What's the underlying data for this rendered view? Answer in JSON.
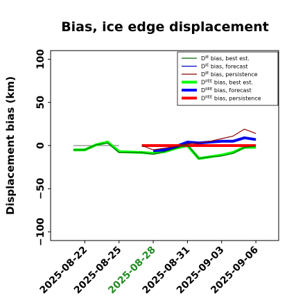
{
  "chart_data": {
    "type": "line",
    "title": "Bias, ice edge displacement",
    "ylabel": "Displacement bias (km)",
    "xlabel": "",
    "xlim": [
      "2025-08-19",
      "2025-09-08"
    ],
    "ylim": [
      -110,
      110
    ],
    "yticks": [
      100,
      50,
      0,
      -50,
      -100
    ],
    "ytick_labels": [
      "100",
      "50",
      "0",
      "−50",
      "−100"
    ],
    "xticks": [
      "2025-08-22",
      "2025-08-25",
      "2025-08-28",
      "2025-08-31",
      "2025-09-03",
      "2025-09-06"
    ],
    "xtick_colors": [
      "#000000",
      "#000000",
      "#228b22",
      "#000000",
      "#000000",
      "#000000"
    ],
    "legend_position": "top-right",
    "grid": false,
    "reference_line": {
      "y": 0,
      "color": "#888888",
      "ranges": [
        [
          "2025-08-21",
          "2025-08-25"
        ],
        [
          "2025-08-27",
          "2025-09-06"
        ]
      ]
    },
    "series": [
      {
        "name": "Dᴵᴱ bias, best est.",
        "legend_name": "D",
        "legend_sup": "IE",
        "legend_rest": " bias, best est.",
        "color": "#006400",
        "width": 1.2,
        "x": [
          "2025-08-21",
          "2025-08-22",
          "2025-08-23",
          "2025-08-24",
          "2025-08-25",
          "2025-08-27",
          "2025-08-28",
          "2025-08-29",
          "2025-08-30",
          "2025-08-31",
          "2025-09-01",
          "2025-09-02",
          "2025-09-03",
          "2025-09-04",
          "2025-09-05",
          "2025-09-06"
        ],
        "y": [
          -5,
          -5,
          1,
          3,
          -8,
          -8,
          -10,
          -7,
          -3,
          1,
          -15,
          -13,
          -12,
          -9,
          -2,
          -1
        ]
      },
      {
        "name": "Dᴵᴱ bias, forecast",
        "legend_name": "D",
        "legend_sup": "IE",
        "legend_rest": " bias, forecast",
        "color": "#0000cd",
        "width": 1.2,
        "x": [
          "2025-08-28",
          "2025-08-29",
          "2025-08-30",
          "2025-08-31",
          "2025-09-01",
          "2025-09-02",
          "2025-09-03",
          "2025-09-04",
          "2025-09-05",
          "2025-09-06"
        ],
        "y": [
          -7,
          -6,
          -2,
          4,
          3,
          4,
          5,
          5,
          10,
          7
        ]
      },
      {
        "name": "Dᴵᴱ bias, persistence",
        "legend_name": "D",
        "legend_sup": "IE",
        "legend_rest": " bias, persistence",
        "color": "#8b0000",
        "width": 1.2,
        "x": [
          "2025-08-27",
          "2025-08-28",
          "2025-08-29",
          "2025-08-30",
          "2025-08-31",
          "2025-09-01",
          "2025-09-02",
          "2025-09-03",
          "2025-09-04",
          "2025-09-05",
          "2025-09-06"
        ],
        "y": [
          0,
          -5,
          -3,
          -1,
          2,
          3,
          5,
          8,
          11,
          19,
          14
        ]
      },
      {
        "name": "Dᴵᴱᴱ bias, best est.",
        "legend_name": "D",
        "legend_sup": "IIEE",
        "legend_rest": " bias, best est.",
        "color": "#00ff00",
        "width": 4,
        "x": [
          "2025-08-21",
          "2025-08-22",
          "2025-08-23",
          "2025-08-24",
          "2025-08-25",
          "2025-08-27",
          "2025-08-28",
          "2025-08-29",
          "2025-08-30",
          "2025-08-31",
          "2025-09-01",
          "2025-09-02",
          "2025-09-03",
          "2025-09-04",
          "2025-09-05",
          "2025-09-06"
        ],
        "y": [
          -5,
          -5,
          1,
          4,
          -7,
          -8,
          -9,
          -7,
          -3,
          0,
          -15,
          -13,
          -11,
          -8,
          -2,
          -2
        ]
      },
      {
        "name": "Dᴵᴱᴱ bias, forecast",
        "legend_name": "D",
        "legend_sup": "IIEE",
        "legend_rest": " bias, forecast",
        "color": "#0000ff",
        "width": 4,
        "x": [
          "2025-08-28",
          "2025-08-29",
          "2025-08-30",
          "2025-08-31",
          "2025-09-01",
          "2025-09-02",
          "2025-09-03",
          "2025-09-04",
          "2025-09-05",
          "2025-09-06"
        ],
        "y": [
          -6,
          -5,
          -1,
          4,
          3,
          4,
          5,
          5,
          9,
          7
        ]
      },
      {
        "name": "Dᴵᴱᴱ bias, persistence",
        "legend_name": "D",
        "legend_sup": "IIEE",
        "legend_rest": " bias, persistence",
        "color": "#ff0000",
        "width": 4,
        "x": [
          "2025-08-27",
          "2025-08-28",
          "2025-08-29",
          "2025-08-30",
          "2025-08-31",
          "2025-09-01",
          "2025-09-02",
          "2025-09-03",
          "2025-09-04",
          "2025-09-05",
          "2025-09-06"
        ],
        "y": [
          0,
          0,
          0,
          0,
          0,
          0,
          0,
          0,
          0,
          0,
          0
        ]
      }
    ]
  }
}
